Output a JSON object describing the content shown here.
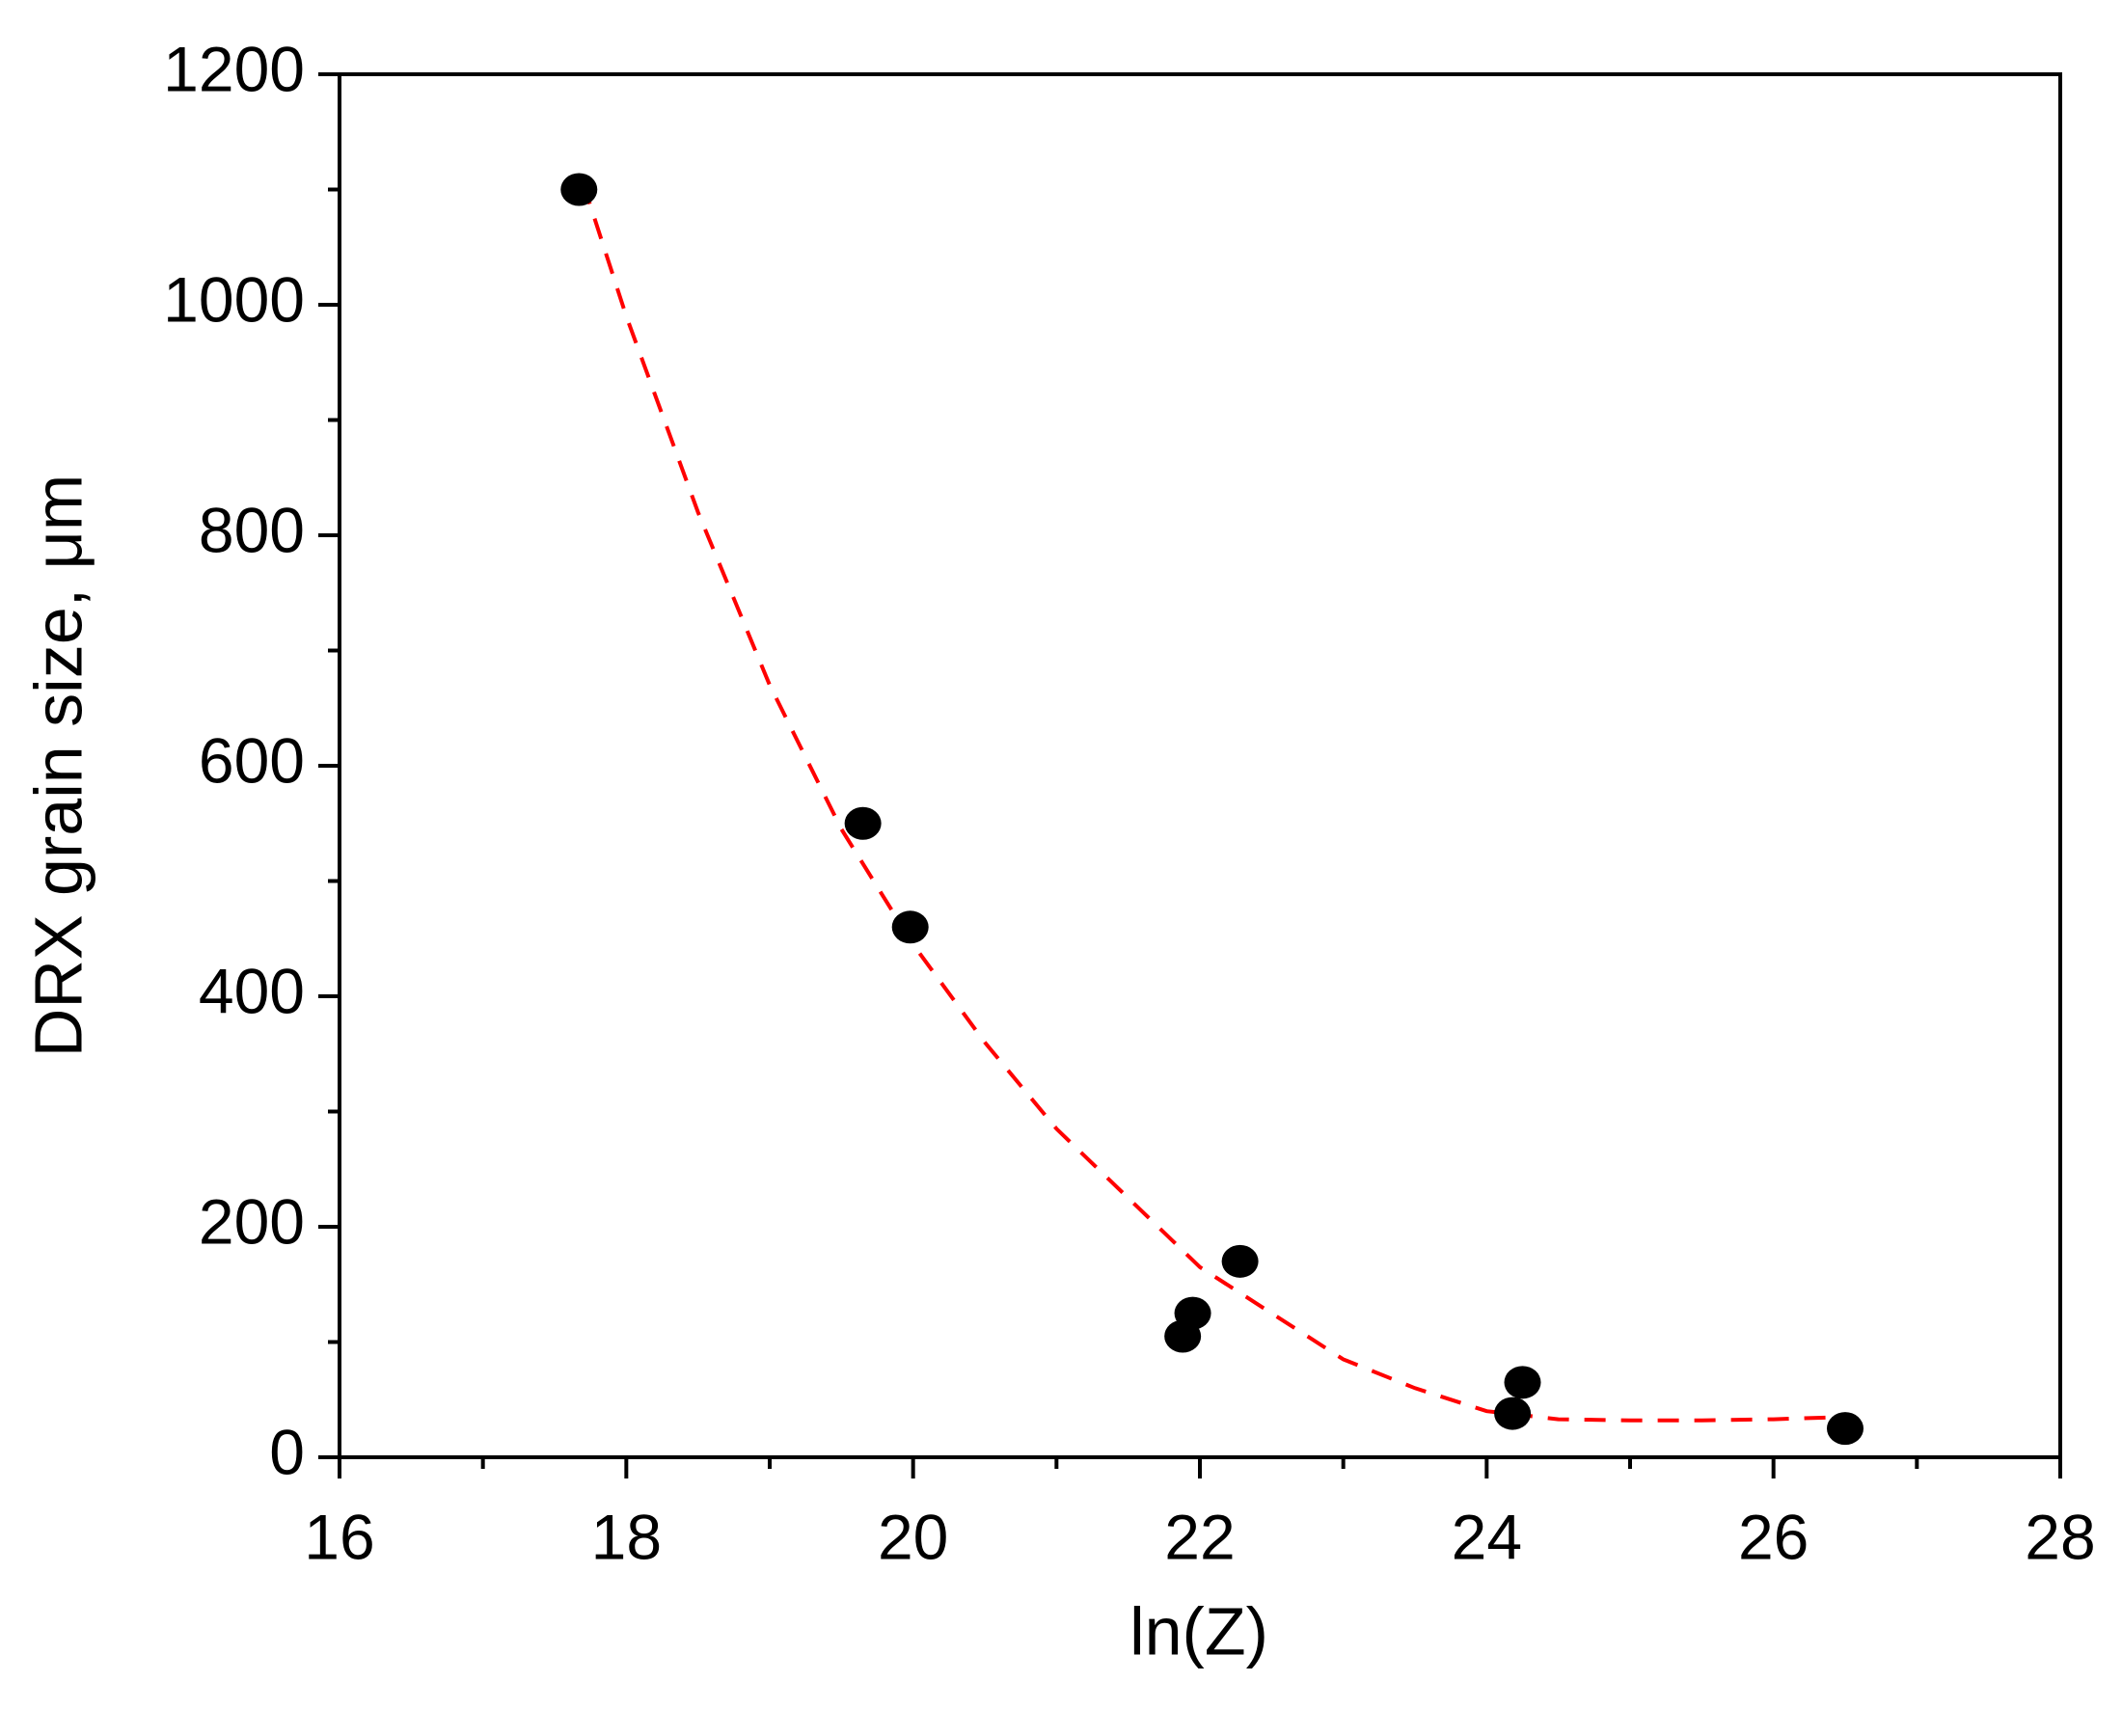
{
  "chart_data": {
    "type": "scatter",
    "x_label": "ln(Z)",
    "y_label": "DRX grain size, μm",
    "xlim": [
      16,
      28
    ],
    "ylim": [
      0,
      1200
    ],
    "xticks": [
      16,
      18,
      20,
      22,
      24,
      26,
      28
    ],
    "yticks": [
      0,
      200,
      400,
      600,
      800,
      1000,
      1200
    ],
    "xminorticks": [
      17,
      19,
      21,
      23,
      25,
      27
    ],
    "yminorticks": [
      100,
      300,
      500,
      700,
      900,
      1100
    ],
    "series": [
      {
        "color": "#000000",
        "x": [
          17.67,
          19.65,
          19.98,
          21.88,
          21.95,
          22.28,
          24.18,
          24.25,
          26.5
        ],
        "values": [
          1100,
          550,
          460,
          105,
          125,
          170,
          38,
          65,
          25
        ]
      }
    ],
    "fit": {
      "color": "#ff0000",
      "x": [
        17.7,
        18,
        18.5,
        19,
        19.5,
        20,
        20.5,
        21,
        21.5,
        22,
        22.5,
        23,
        23.5,
        24,
        24.5,
        25,
        25.5,
        26,
        26.5
      ],
      "values": [
        1105,
        990,
        820,
        670,
        545,
        445,
        360,
        285,
        225,
        165,
        125,
        85,
        60,
        40,
        33,
        32,
        32,
        33,
        35
      ]
    }
  }
}
